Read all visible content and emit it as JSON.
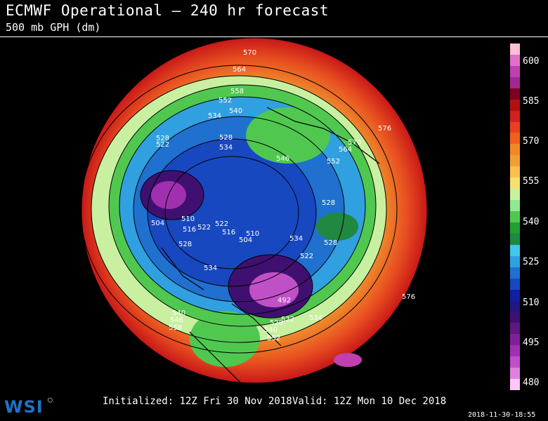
{
  "header": {
    "title": "ECMWF Operational – 240 hr forecast",
    "subtitle": "500 mb GPH (dm)"
  },
  "footer": {
    "initialized": "Initialized: 12Z Fri 30 Nov 2018",
    "valid": "Valid: 12Z Mon 10 Dec 2018",
    "logo": "WSI",
    "timestamp": "2018-11-30-18:55"
  },
  "colorbar": {
    "tick_labels": [
      "600",
      "585",
      "570",
      "555",
      "540",
      "525",
      "510",
      "495",
      "480"
    ],
    "colors": [
      "#ffc0d8",
      "#e070c8",
      "#c040b0",
      "#a02890",
      "#800020",
      "#b01010",
      "#d02020",
      "#e84020",
      "#f06020",
      "#f08828",
      "#f0a030",
      "#f8c050",
      "#f8e070",
      "#c8f0a0",
      "#90e890",
      "#50c850",
      "#20a030",
      "#208840",
      "#40c8e8",
      "#30a0e0",
      "#2070d0",
      "#1848c0",
      "#1020a0",
      "#201880",
      "#401070",
      "#601880",
      "#802098",
      "#a030b0",
      "#c050c8",
      "#e080e0",
      "#ffc8f8"
    ]
  },
  "map": {
    "contour_labels": [
      "570",
      "564",
      "558",
      "552",
      "546",
      "540",
      "534",
      "528",
      "522",
      "516",
      "510",
      "504",
      "492",
      "576"
    ]
  }
}
